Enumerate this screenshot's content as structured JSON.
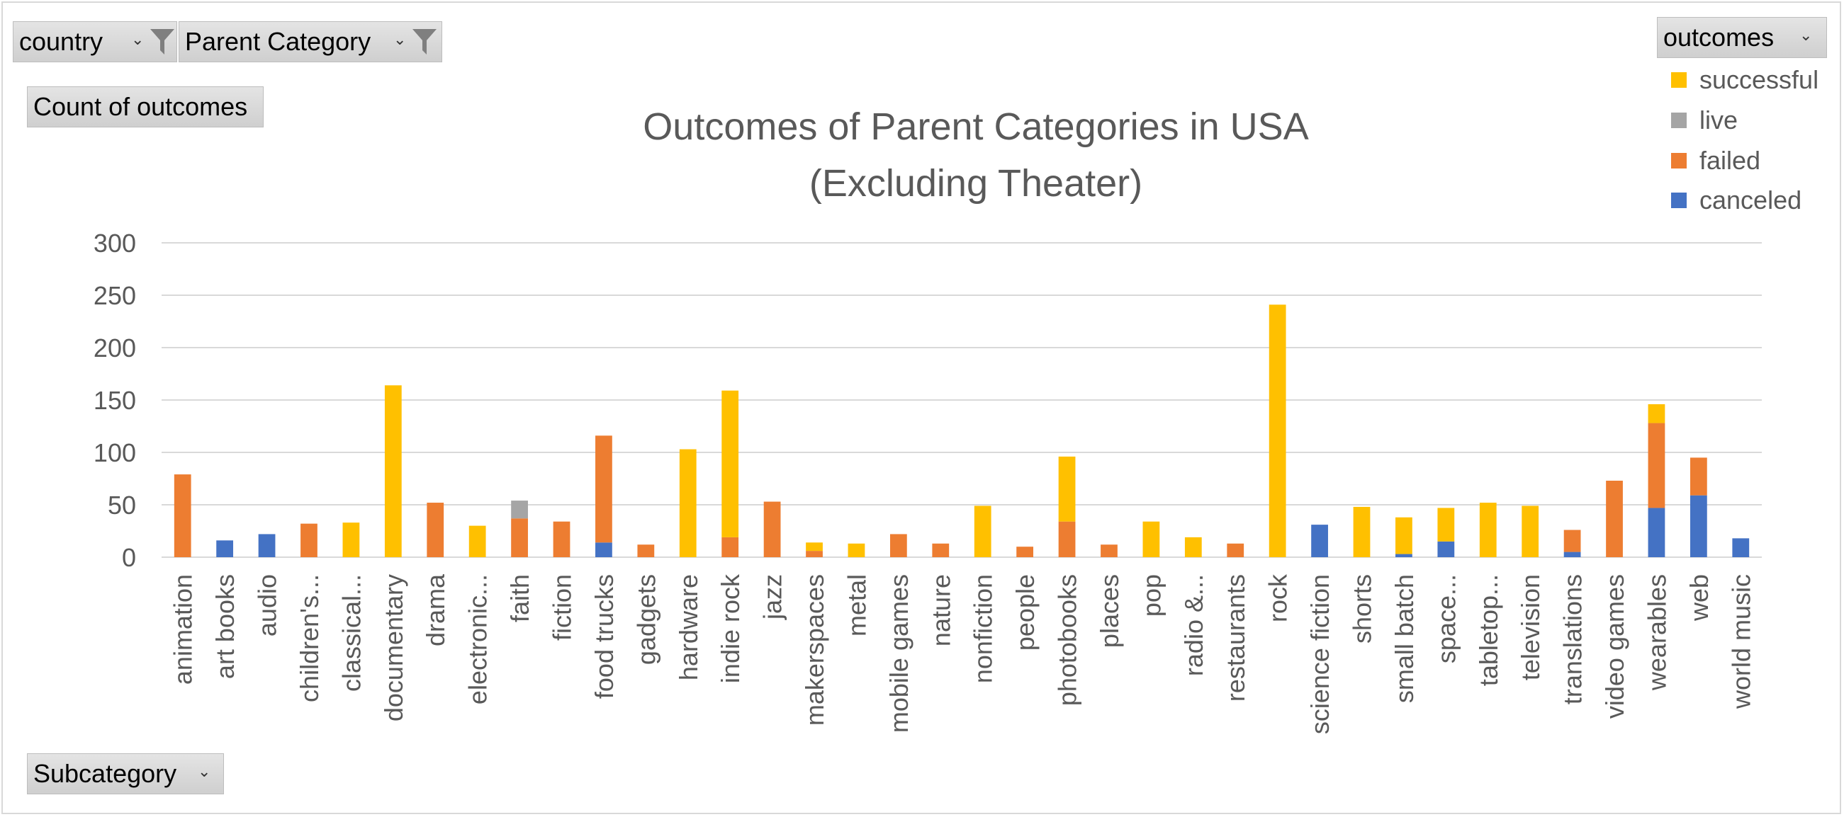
{
  "filters": {
    "country_label": "country",
    "parent_category_label": "Parent Category",
    "values_label": "Count of outcomes",
    "axis_field_label": "Subcategory",
    "legend_field_label": "outcomes"
  },
  "legend": [
    {
      "name": "successful",
      "color": "#FFC000"
    },
    {
      "name": "live",
      "color": "#A5A5A5"
    },
    {
      "name": "failed",
      "color": "#ED7D31"
    },
    {
      "name": "canceled",
      "color": "#4472C4"
    }
  ],
  "chart_data": {
    "type": "bar",
    "stacked": true,
    "title": "Outcomes of Parent Categories in USA",
    "subtitle": "(Excluding Theater)",
    "xlabel": "",
    "ylabel": "",
    "ylim": [
      0,
      300
    ],
    "yticks": [
      0,
      50,
      100,
      150,
      200,
      250,
      300
    ],
    "grid": true,
    "legend_position": "top-right",
    "categories": [
      "animation",
      "art books",
      "audio",
      "children's...",
      "classical...",
      "documentary",
      "drama",
      "electronic...",
      "faith",
      "fiction",
      "food trucks",
      "gadgets",
      "hardware",
      "indie rock",
      "jazz",
      "makerspaces",
      "metal",
      "mobile games",
      "nature",
      "nonfiction",
      "people",
      "photobooks",
      "places",
      "pop",
      "radio &...",
      "restaurants",
      "rock",
      "science fiction",
      "shorts",
      "small batch",
      "space...",
      "tabletop...",
      "television",
      "translations",
      "video games",
      "wearables",
      "web",
      "world music"
    ],
    "series": [
      {
        "name": "canceled",
        "color": "#4472C4",
        "values": [
          0,
          16,
          22,
          0,
          0,
          0,
          0,
          0,
          0,
          0,
          14,
          0,
          0,
          0,
          0,
          0,
          0,
          0,
          0,
          0,
          0,
          0,
          0,
          0,
          0,
          0,
          0,
          31,
          0,
          3,
          15,
          0,
          0,
          5,
          0,
          47,
          59,
          18
        ]
      },
      {
        "name": "failed",
        "color": "#ED7D31",
        "values": [
          79,
          0,
          0,
          32,
          0,
          0,
          52,
          0,
          37,
          34,
          102,
          12,
          0,
          19,
          53,
          6,
          0,
          22,
          13,
          0,
          10,
          34,
          12,
          0,
          0,
          13,
          0,
          0,
          0,
          0,
          0,
          0,
          0,
          21,
          73,
          81,
          36,
          0
        ]
      },
      {
        "name": "live",
        "color": "#A5A5A5",
        "values": [
          0,
          0,
          0,
          0,
          0,
          0,
          0,
          0,
          17,
          0,
          0,
          0,
          0,
          0,
          0,
          0,
          0,
          0,
          0,
          0,
          0,
          0,
          0,
          0,
          0,
          0,
          0,
          0,
          0,
          0,
          0,
          0,
          0,
          0,
          0,
          0,
          0,
          0
        ]
      },
      {
        "name": "successful",
        "color": "#FFC000",
        "values": [
          0,
          0,
          0,
          0,
          33,
          164,
          0,
          30,
          0,
          0,
          0,
          0,
          103,
          140,
          0,
          8,
          13,
          0,
          0,
          49,
          0,
          62,
          0,
          34,
          19,
          0,
          241,
          0,
          48,
          35,
          32,
          52,
          49,
          0,
          0,
          18,
          0,
          0
        ]
      }
    ]
  }
}
